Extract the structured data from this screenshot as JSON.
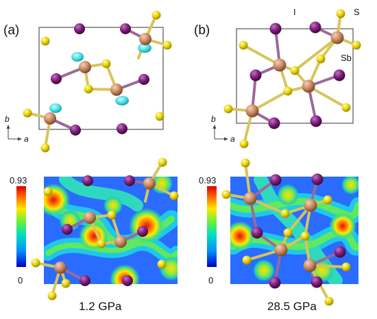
{
  "panels": [
    {
      "label": "(a)",
      "pressure": "1.2 GPa",
      "axis_b": "b",
      "axis_a": "a",
      "colorbar_max": "0.93",
      "colorbar_min": "0"
    },
    {
      "label": "(b)",
      "pressure": "28.5 GPa",
      "axis_b": "b",
      "axis_a": "a",
      "colorbar_max": "0.93",
      "colorbar_min": "0"
    }
  ],
  "atom_legend": {
    "iodine": "I",
    "sulfur": "S",
    "antimony": "Sb"
  },
  "colors": {
    "iodine": "#7a1f7a",
    "sulfur": "#e0d000",
    "antimony": "#c98a62",
    "lone_pair": "#40d8e0",
    "elf_background": "#2060ff"
  }
}
